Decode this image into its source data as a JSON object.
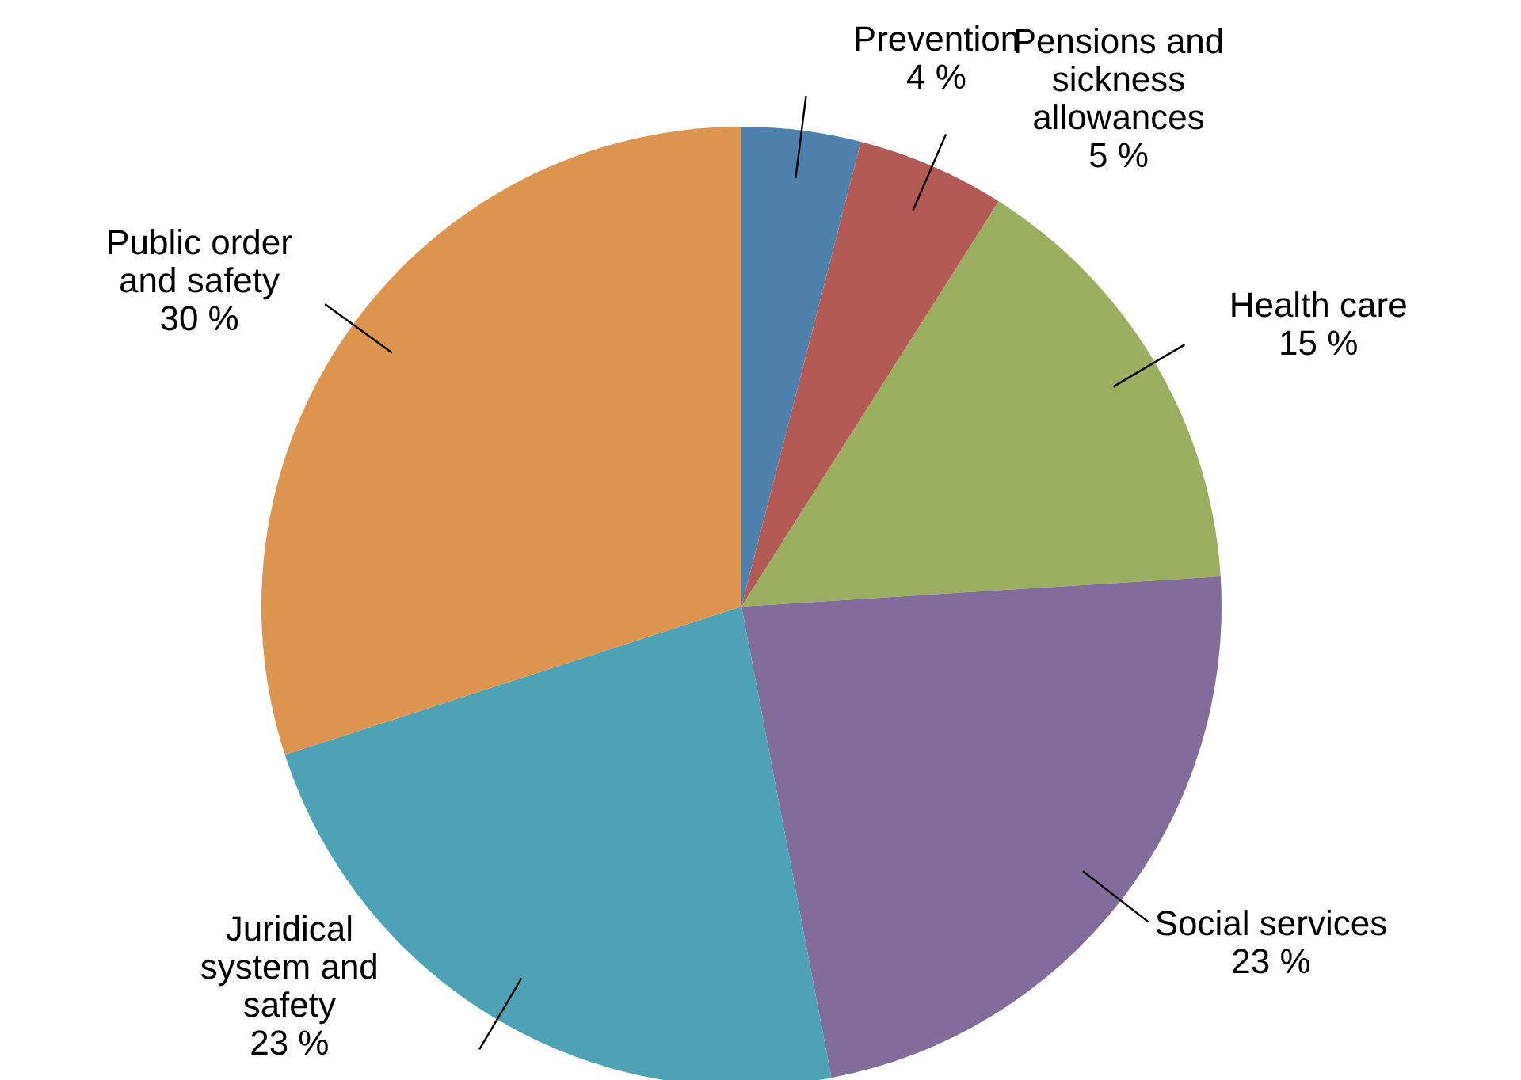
{
  "chart_data": {
    "type": "pie",
    "categories": [
      "Prevention",
      "Pensions and sickness allowances",
      "Health care",
      "Social services",
      "Juridical system and safety",
      "Public order and safety"
    ],
    "values": [
      4,
      5,
      15,
      23,
      23,
      30
    ],
    "value_labels": [
      "4 %",
      "5 %",
      "15 %",
      "23 %",
      "23 %",
      "30 %"
    ],
    "colors": [
      "#4f81ad",
      "#b35a55",
      "#9aae5f",
      "#816c9b",
      "#4ea2b6",
      "#dc944e"
    ]
  }
}
